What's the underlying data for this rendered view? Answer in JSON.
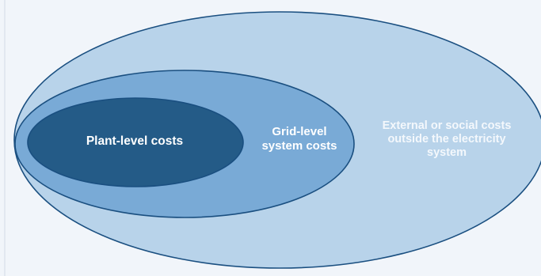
{
  "diagram": {
    "outer": {
      "label": "External or social costs\noutside the electricity\nsystem",
      "fill": "#b8d3ea",
      "stroke": "#1a4f80"
    },
    "middle": {
      "label": "Grid-level\nsystem costs",
      "fill": "#79aad6",
      "stroke": "#1a4f80"
    },
    "inner": {
      "label": "Plant-level costs",
      "fill": "#245b87",
      "stroke": "#1a4f80"
    }
  }
}
